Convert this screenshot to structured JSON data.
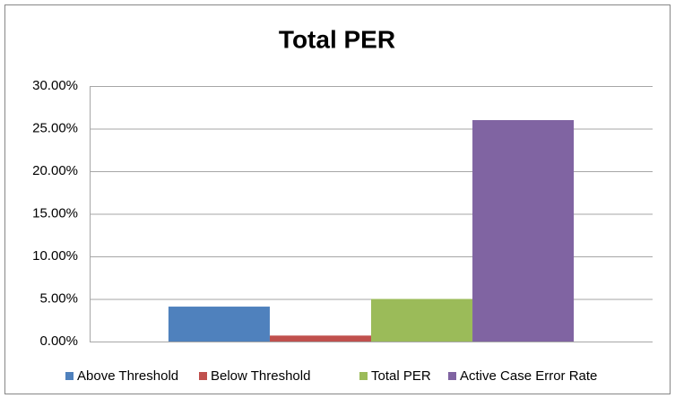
{
  "chart_data": {
    "type": "bar",
    "title": "Total PER",
    "categories": [
      null
    ],
    "series": [
      {
        "name": "Above Threshold",
        "color": "#4f81bd",
        "values": [
          4.1
        ]
      },
      {
        "name": "Below Threshold",
        "color": "#c0504d",
        "values": [
          0.7
        ]
      },
      {
        "name": "Total PER",
        "color": "#9bbb59",
        "values": [
          5.0
        ]
      },
      {
        "name": "Active Case Error Rate",
        "color": "#8064a2",
        "values": [
          26.0
        ]
      }
    ],
    "ylim": [
      0,
      30
    ],
    "yticks": [
      {
        "value": 0,
        "label": "0.00%"
      },
      {
        "value": 5,
        "label": "5.00%"
      },
      {
        "value": 10,
        "label": "10.00%"
      },
      {
        "value": 15,
        "label": "15.00%"
      },
      {
        "value": 20,
        "label": "20.00%"
      },
      {
        "value": 25,
        "label": "25.00%"
      },
      {
        "value": 30,
        "label": "30.00%"
      }
    ],
    "grid": true,
    "legend": "bottom"
  }
}
